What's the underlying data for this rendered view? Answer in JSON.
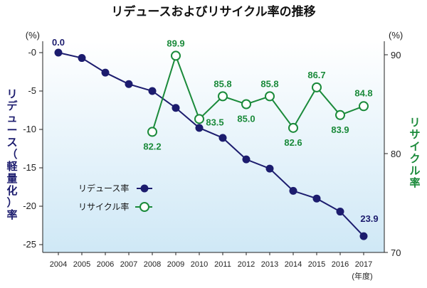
{
  "chart_data": {
    "type": "line",
    "title": "リデュースおよびリサイクル率の推移",
    "x": [
      "2004",
      "2005",
      "2006",
      "2007",
      "2008",
      "2009",
      "2010",
      "2011",
      "2012",
      "2013",
      "2014",
      "2015",
      "2016",
      "2017"
    ],
    "x_unit": "(年度)",
    "left_axis": {
      "label": "リデュース（軽量化）率",
      "unit": "(%)",
      "ylim": [
        -25,
        0
      ],
      "ticks": [
        "-0",
        "-5",
        "-10",
        "-15",
        "-20",
        "-25"
      ]
    },
    "right_axis": {
      "label": "リサイクル率",
      "unit": "(%)",
      "ylim": [
        70,
        90
      ],
      "ticks": [
        "90",
        "80",
        "70"
      ]
    },
    "series": [
      {
        "name": "リデュース率",
        "axis": "left",
        "color": "#1c1c6e",
        "marker": "filled-circle",
        "x": [
          "2004",
          "2005",
          "2006",
          "2007",
          "2008",
          "2009",
          "2010",
          "2011",
          "2012",
          "2013",
          "2014",
          "2015",
          "2016",
          "2017"
        ],
        "values": [
          0.0,
          -0.7,
          -2.6,
          -4.1,
          -5.0,
          -7.2,
          -9.8,
          -11.1,
          -13.9,
          -15.1,
          -18.0,
          -19.0,
          -20.7,
          -23.9
        ],
        "data_labels": {
          "2004": "0.0",
          "2017": "23.9"
        }
      },
      {
        "name": "リサイクル率",
        "axis": "right",
        "color": "#1a8a3a",
        "marker": "open-circle",
        "x": [
          "2008",
          "2009",
          "2010",
          "2011",
          "2012",
          "2013",
          "2014",
          "2015",
          "2016",
          "2017"
        ],
        "values": [
          82.2,
          89.9,
          83.5,
          85.8,
          85.0,
          85.8,
          82.6,
          86.7,
          83.9,
          84.8
        ],
        "data_labels": {
          "2008": "82.2",
          "2009": "89.9",
          "2010": "83.5",
          "2011": "85.8",
          "2012": "85.0",
          "2013": "85.8",
          "2014": "82.6",
          "2015": "86.7",
          "2016": "83.9",
          "2017": "84.8"
        }
      }
    ],
    "legend": {
      "placement": "lower-left",
      "entries": [
        "リデュース率",
        "リサイクル率"
      ]
    },
    "grid": false,
    "colors": {
      "reduce": "#1c1c6e",
      "recycle": "#1a8a3a",
      "plot_bg_top": "#ffffff",
      "plot_bg_bottom": "#cfe8f6"
    }
  }
}
